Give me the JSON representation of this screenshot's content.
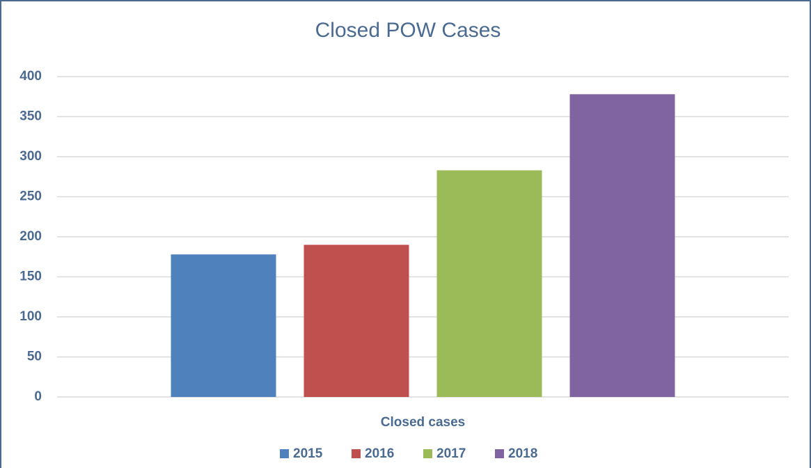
{
  "chart_data": {
    "type": "bar",
    "title": "Closed POW Cases",
    "categories": [
      "Closed cases"
    ],
    "series": [
      {
        "name": "2015",
        "color": "#4f81bd",
        "values": [
          178
        ]
      },
      {
        "name": "2016",
        "color": "#c0504d",
        "values": [
          190
        ]
      },
      {
        "name": "2017",
        "color": "#9bbb59",
        "values": [
          283
        ]
      },
      {
        "name": "2018",
        "color": "#8064a2",
        "values": [
          378
        ]
      }
    ],
    "ylim": [
      0,
      400
    ],
    "yticks": [
      0,
      50,
      100,
      150,
      200,
      250,
      300,
      350,
      400
    ],
    "grid": true,
    "legend": "bottom"
  }
}
